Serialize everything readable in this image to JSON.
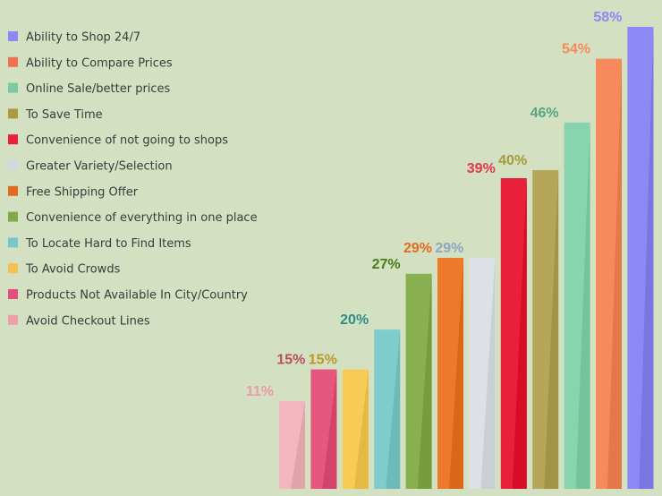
{
  "chart_data": {
    "type": "bar",
    "title": "",
    "xlabel": "",
    "ylabel": "",
    "ylim": [
      0,
      58
    ],
    "grid": false,
    "legend_position": "top-left",
    "categories": [
      "Avoid Checkout Lines",
      "Products Not Available In City/Country",
      "To Avoid Crowds",
      "To Locate Hard to Find Items",
      "Convenience of everything in one place",
      "Free Shipping Offer",
      "Greater Variety/Selection",
      "Convenience of not going to shops",
      "To Save Time",
      "Online Sale/better prices",
      "Ability to Compare Prices",
      "Ability to Shop 24/7"
    ],
    "values": [
      11,
      15,
      15,
      20,
      27,
      29,
      29,
      39,
      40,
      46,
      54,
      58
    ],
    "value_labels": [
      "11%",
      "15%",
      "15%",
      "20%",
      "27%",
      "29%",
      "29%",
      "39%",
      "40%",
      "46%",
      "54%",
      "58%"
    ],
    "colors": [
      "#f4b6be",
      "#e5577f",
      "#f6cc55",
      "#7fcccc",
      "#88b050",
      "#ec7a2a",
      "#dde1e6",
      "#e8203c",
      "#b5a757",
      "#88d4ae",
      "#f68a5d",
      "#8c88f5"
    ],
    "label_colors": [
      "#eb9aa4",
      "#b5505e",
      "#b79a25",
      "#2f8c8a",
      "#4c7a1a",
      "#e46a1f",
      "#8ea6c2",
      "#e0384c",
      "#a39a3a",
      "#56a585",
      "#f58a58",
      "#8c88f5"
    ],
    "legend": [
      {
        "label": "Ability to Shop 24/7",
        "color": "#8c88f5"
      },
      {
        "label": "Ability to Compare Prices",
        "color": "#f07050"
      },
      {
        "label": "Online Sale/better prices",
        "color": "#7cc8a0"
      },
      {
        "label": "To Save Time",
        "color": "#aa9a40"
      },
      {
        "label": "Convenience of not going to shops",
        "color": "#e8203c"
      },
      {
        "label": "Greater Variety/Selection",
        "color": "#d0d8e0"
      },
      {
        "label": "Free Shipping Offer",
        "color": "#e46a1f"
      },
      {
        "label": "Convenience of everything in one place",
        "color": "#80aa48"
      },
      {
        "label": "To Locate Hard to Find Items",
        "color": "#78c8c8"
      },
      {
        "label": "To Avoid Crowds",
        "color": "#f4c050"
      },
      {
        "label": "Products Not Available In City/Country",
        "color": "#e0507a"
      },
      {
        "label": "Avoid Checkout Lines",
        "color": "#eea0a8"
      }
    ]
  }
}
